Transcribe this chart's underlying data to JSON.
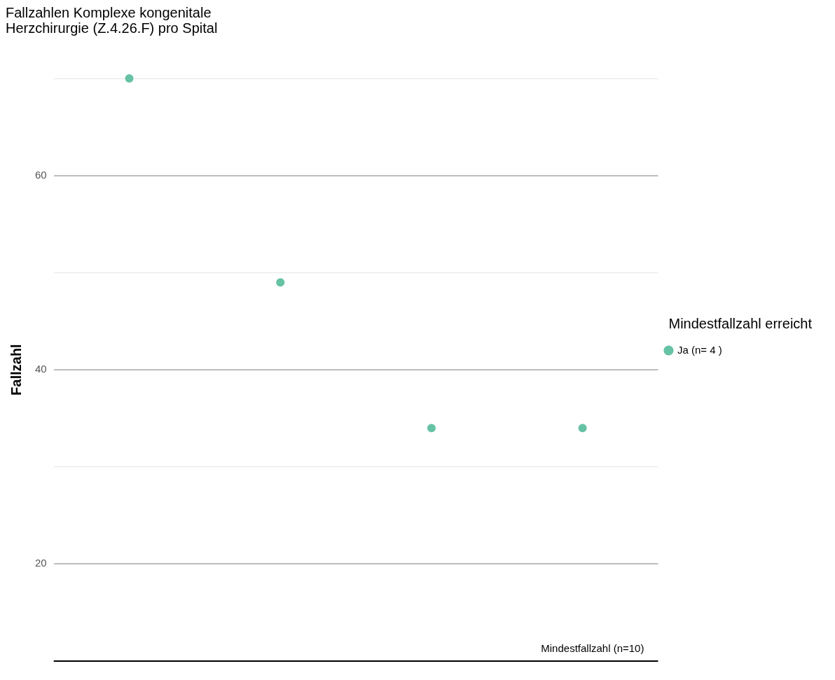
{
  "chart_data": {
    "type": "scatter",
    "title": "Fallzahlen Komplexe kongenitale\nHerzchirurgie (Z.4.26.F) pro Spital",
    "ylabel": "Fallzahl",
    "legend_title": "Mindestfallzahl erreicht",
    "categories": [
      null,
      null,
      null,
      null
    ],
    "series": [
      {
        "name": "Ja (n= 4 )",
        "color": "#66c2a5",
        "values": [
          70,
          49,
          34,
          34
        ]
      }
    ],
    "ylim": [
      10,
      70
    ],
    "yticks": [
      20,
      {
        "value": 30,
        "label": null
      },
      40,
      {
        "value": 50,
        "label": null
      },
      60,
      {
        "value": 70,
        "label": null
      }
    ],
    "ref_lines": [
      {
        "axis": "y",
        "value": 10,
        "label": "Mindestfallzahl (n=10)",
        "color": "#000000"
      }
    ],
    "grid": "y",
    "legend": "right",
    "marker": "circle",
    "tick_labels": "y"
  }
}
